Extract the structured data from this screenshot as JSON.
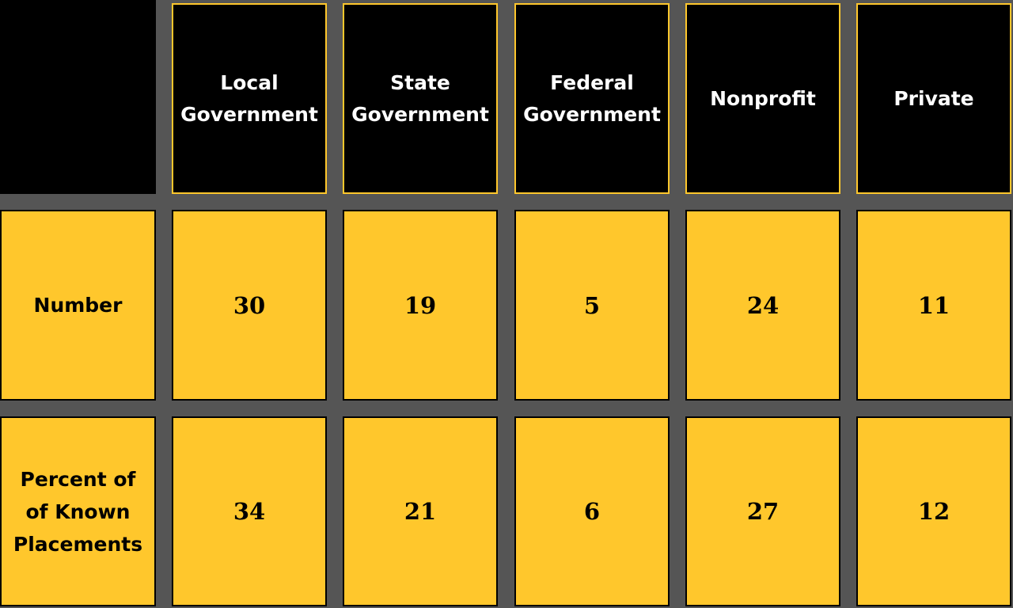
{
  "colors": {
    "background": "#555555",
    "header_bg": "#000000",
    "header_border": "#FFC72C",
    "cell_bg": "#FFC72C",
    "cell_border": "#000000"
  },
  "table": {
    "columns": [
      "Local\nGovernment",
      "State\nGovernment",
      "Federal\nGovernment",
      "Nonprofit",
      "Private"
    ],
    "rows": [
      {
        "label": "Number",
        "values": [
          "30",
          "19",
          "5",
          "24",
          "11"
        ]
      },
      {
        "label": "Percent of\nof Known\nPlacements",
        "values": [
          "34",
          "21",
          "6",
          "27",
          "12"
        ]
      }
    ]
  }
}
